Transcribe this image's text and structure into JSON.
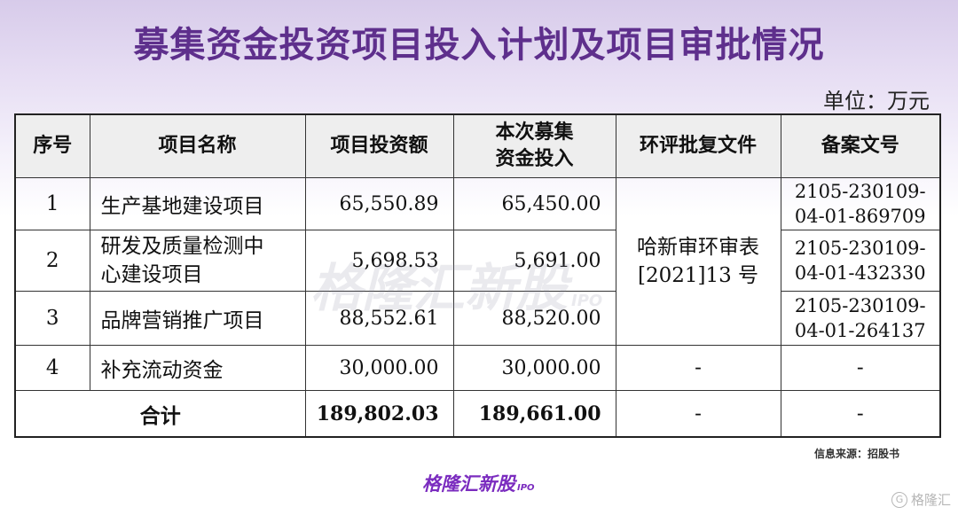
{
  "title": "募集资金投资项目投入计划及项目审批情况",
  "unit": "单位：万元",
  "table": {
    "headers": [
      "序号",
      "项目名称",
      "项目投资额",
      "本次募集资金投入",
      "环评批复文件",
      "备案文号"
    ],
    "header_investment_line1": "本次募集",
    "header_investment_line2": "资金投入",
    "rows": [
      {
        "no": "1",
        "name_line1": "生产基地建设项目",
        "name_line2": "",
        "investment": "65,550.89",
        "raised": "65,450.00",
        "filing_line1": "2105-230109-",
        "filing_line2": "04-01-869709"
      },
      {
        "no": "2",
        "name_line1": "研发及质量检测中",
        "name_line2": "心建设项目",
        "investment": "5,698.53",
        "raised": "5,691.00",
        "filing_line1": "2105-230109-",
        "filing_line2": "04-01-432330"
      },
      {
        "no": "3",
        "name_line1": "品牌营销推广项目",
        "name_line2": "",
        "investment": "88,552.61",
        "raised": "88,520.00",
        "filing_line1": "2105-230109-",
        "filing_line2": "04-01-264137"
      },
      {
        "no": "4",
        "name_line1": "补充流动资金",
        "name_line2": "",
        "investment": "30,000.00",
        "raised": "30,000.00",
        "env": "-",
        "filing": "-"
      }
    ],
    "env_approval_line1": "哈新审环审表",
    "env_approval_line2": "[2021]13 号",
    "total": {
      "label": "合计",
      "investment": "189,802.03",
      "raised": "189,661.00",
      "env": "-",
      "filing": "-"
    }
  },
  "source": "信息来源：招股书",
  "brand": {
    "name": "格隆汇新股",
    "suffix": "IPO"
  },
  "watermark": {
    "name": "格隆汇新股",
    "suffix": "IPO"
  },
  "corner_logo": {
    "icon": "g-logo-icon",
    "text": "格隆汇"
  }
}
